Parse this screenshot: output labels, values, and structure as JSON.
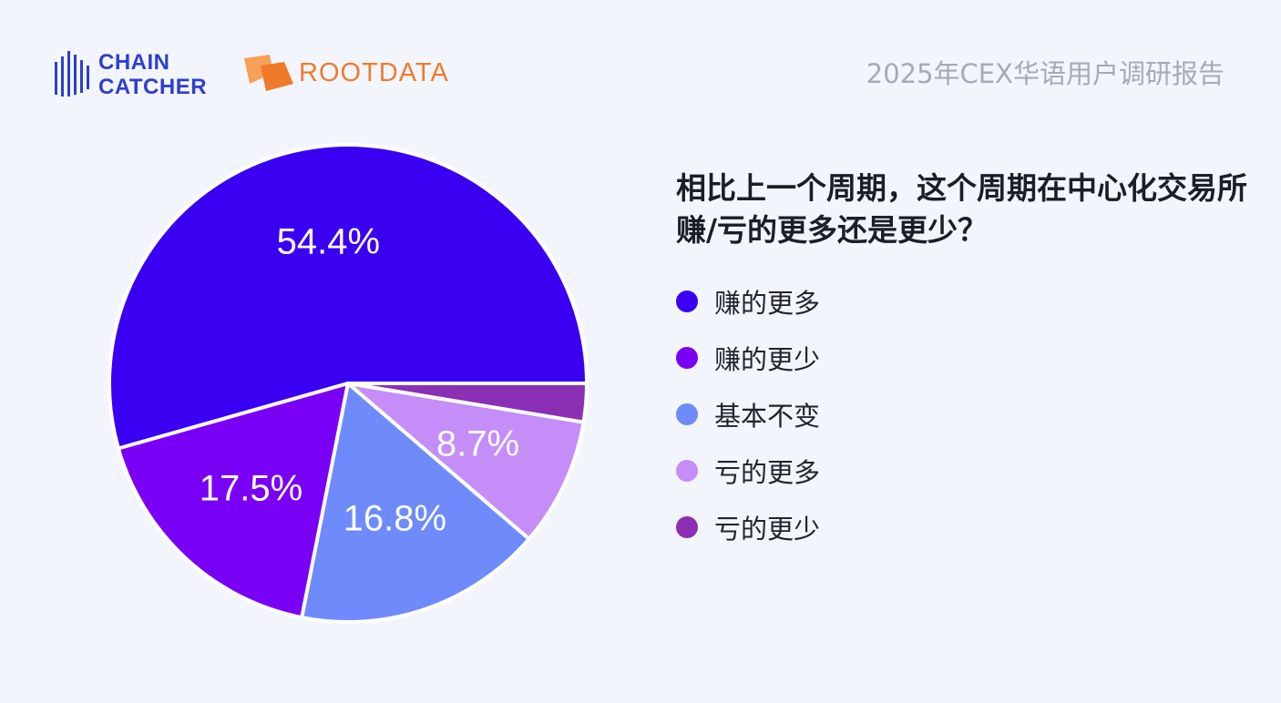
{
  "header": {
    "logo_chaincatcher_line1": "CHAIN",
    "logo_chaincatcher_line2": "CATCHER",
    "logo_rootdata": "ROOTDATA",
    "report_title": "2025年CEX华语用户调研报告"
  },
  "colors": {
    "background": "#f3f5fd",
    "brand_chaincatcher": "#2c3fcf",
    "brand_rootdata": "#f07a2a"
  },
  "chart_data": {
    "type": "pie",
    "title": "相比上一个周期，这个周期在中心化交易所赚/亏的更多还是更少？",
    "slices": [
      {
        "label": "赚的更多",
        "value": 54.4,
        "display": "54.4%",
        "color": "#3a00f2"
      },
      {
        "label": "赚的更少",
        "value": 17.5,
        "display": "17.5%",
        "color": "#7a00f5"
      },
      {
        "label": "基本不变",
        "value": 16.8,
        "display": "16.8%",
        "color": "#6e8afb"
      },
      {
        "label": "亏的更多",
        "value": 8.7,
        "display": "8.7%",
        "color": "#c48df8"
      },
      {
        "label": "亏的更少",
        "value": 2.6,
        "display": "",
        "color": "#8b2fb5"
      }
    ],
    "start_direction": "3 o'clock",
    "direction": "counter-clockwise",
    "legend_position": "right"
  }
}
